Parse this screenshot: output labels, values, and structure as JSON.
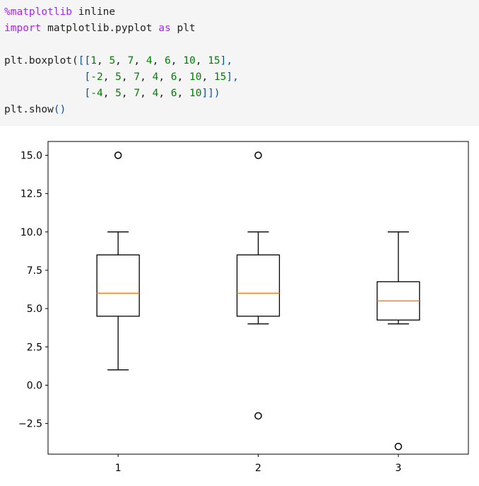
{
  "notebook": {
    "code_lines": [
      [
        {
          "t": "%matplotlib",
          "c": "magic"
        },
        {
          "t": " inline",
          "c": ""
        }
      ],
      [
        {
          "t": "import",
          "c": "kw"
        },
        {
          "t": " matplotlib.pyplot ",
          "c": ""
        },
        {
          "t": "as",
          "c": "kw"
        },
        {
          "t": " plt",
          "c": ""
        }
      ],
      [],
      [
        {
          "t": "plt.boxplot(",
          "c": ""
        },
        {
          "t": "[[",
          "c": "bracket"
        },
        {
          "t": "1",
          "c": "num"
        },
        {
          "t": ", ",
          "c": ""
        },
        {
          "t": "5",
          "c": "num"
        },
        {
          "t": ", ",
          "c": ""
        },
        {
          "t": "7",
          "c": "num"
        },
        {
          "t": ", ",
          "c": ""
        },
        {
          "t": "4",
          "c": "num"
        },
        {
          "t": ", ",
          "c": ""
        },
        {
          "t": "6",
          "c": "num"
        },
        {
          "t": ", ",
          "c": ""
        },
        {
          "t": "10",
          "c": "num"
        },
        {
          "t": ", ",
          "c": ""
        },
        {
          "t": "15",
          "c": "num"
        },
        {
          "t": "],",
          "c": "bracket"
        }
      ],
      [
        {
          "t": "             ",
          "c": ""
        },
        {
          "t": "[",
          "c": "bracket"
        },
        {
          "t": "-2",
          "c": "num"
        },
        {
          "t": ", ",
          "c": ""
        },
        {
          "t": "5",
          "c": "num"
        },
        {
          "t": ", ",
          "c": ""
        },
        {
          "t": "7",
          "c": "num"
        },
        {
          "t": ", ",
          "c": ""
        },
        {
          "t": "4",
          "c": "num"
        },
        {
          "t": ", ",
          "c": ""
        },
        {
          "t": "6",
          "c": "num"
        },
        {
          "t": ", ",
          "c": ""
        },
        {
          "t": "10",
          "c": "num"
        },
        {
          "t": ", ",
          "c": ""
        },
        {
          "t": "15",
          "c": "num"
        },
        {
          "t": "],",
          "c": "bracket"
        }
      ],
      [
        {
          "t": "             ",
          "c": ""
        },
        {
          "t": "[",
          "c": "bracket"
        },
        {
          "t": "-4",
          "c": "num"
        },
        {
          "t": ", ",
          "c": ""
        },
        {
          "t": "5",
          "c": "num"
        },
        {
          "t": ", ",
          "c": ""
        },
        {
          "t": "7",
          "c": "num"
        },
        {
          "t": ", ",
          "c": ""
        },
        {
          "t": "4",
          "c": "num"
        },
        {
          "t": ", ",
          "c": ""
        },
        {
          "t": "6",
          "c": "num"
        },
        {
          "t": ", ",
          "c": ""
        },
        {
          "t": "10",
          "c": "num"
        },
        {
          "t": "]]",
          "c": "bracket"
        },
        {
          "t": ")",
          "c": "bracket"
        }
      ],
      [
        {
          "t": "plt.show",
          "c": ""
        },
        {
          "t": "()",
          "c": "bracket"
        }
      ]
    ]
  },
  "chart_data": {
    "type": "box",
    "categories": [
      "1",
      "2",
      "3"
    ],
    "ylim": [
      -4.5,
      15.9
    ],
    "yticks": [
      "15.0",
      "12.5",
      "10.0",
      "7.5",
      "5.0",
      "2.5",
      "0.0",
      "−2.5"
    ],
    "ytick_values": [
      15.0,
      12.5,
      10.0,
      7.5,
      5.0,
      2.5,
      0.0,
      -2.5
    ],
    "grid": false,
    "colors": {
      "box": "#000000",
      "median": "#ff7f0e"
    },
    "boxes": [
      {
        "category": "1",
        "whisker_low": 1,
        "q1": 4.5,
        "median": 6,
        "q3": 8.5,
        "whisker_high": 10,
        "fliers": [
          15
        ]
      },
      {
        "category": "2",
        "whisker_low": 4,
        "q1": 4.5,
        "median": 6,
        "q3": 8.5,
        "whisker_high": 10,
        "fliers": [
          -2,
          15
        ]
      },
      {
        "category": "3",
        "whisker_low": 4,
        "q1": 4.25,
        "median": 5.5,
        "q3": 6.75,
        "whisker_high": 10,
        "fliers": [
          -4
        ]
      }
    ]
  }
}
